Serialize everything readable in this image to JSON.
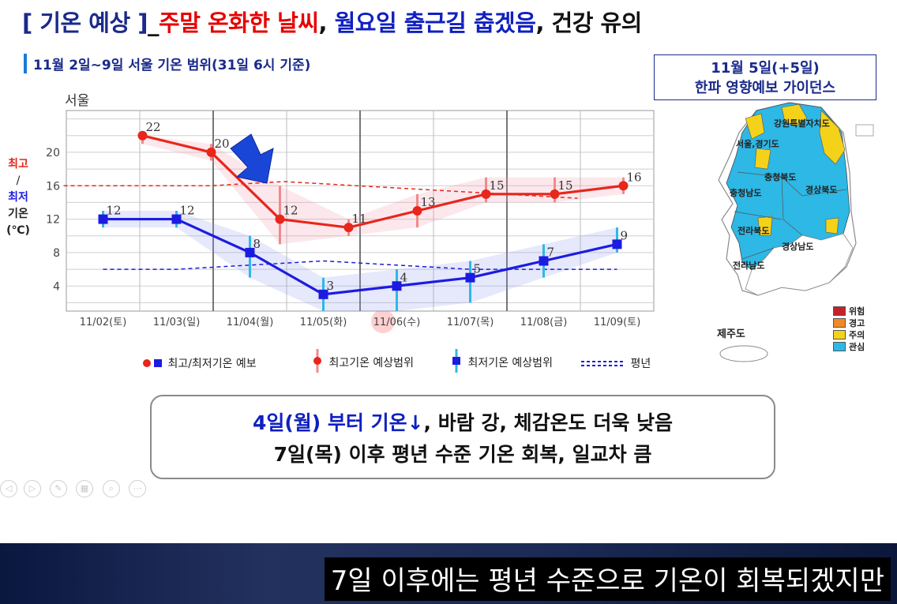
{
  "title": {
    "bracket": "[ 기온 예상 ]",
    "underscore": "_",
    "red": "주말 온화한 날씨",
    "sep1": ", ",
    "blue": "월요일 출근길 춥겠음",
    "sep2": ", 건강 유의"
  },
  "subtitle": "11월 2일~9일 서울 기온 범위(31일 6시 기준)",
  "city": "서울",
  "ylabel": {
    "max": "최고",
    "slash": "/",
    "min": "최저",
    "temp": "기온",
    "unit": "(℃)"
  },
  "legend": {
    "forecast": "최고/최저기온 예보",
    "max_range": "최고기온 예상범위",
    "min_range": "최저기온 예상범위",
    "normal": "평년"
  },
  "summary": {
    "line1_blue": "4일(월) 부터 기온↓",
    "line1_rest": ", 바람 강, 체감온도 더욱 낮음",
    "line2": "7일(목) 이후 평년 수준 기온 회복, 일교차 큼"
  },
  "guide": {
    "line1": "11월 5일(+5일)",
    "line2": "한파 영향예보 가이던스"
  },
  "map": {
    "labels": [
      "강원특별자치도",
      "서울,경기도",
      "충청북도",
      "충청남도",
      "경상북도",
      "전라북도",
      "경상남도",
      "전라남도"
    ],
    "jeju": "제주도",
    "legend": [
      {
        "label": "위험",
        "color": "#c8202a"
      },
      {
        "label": "경고",
        "color": "#f08a24"
      },
      {
        "label": "주의",
        "color": "#f4d21a"
      },
      {
        "label": "관심",
        "color": "#2db8e6"
      }
    ]
  },
  "caption": "7일 이후에는 평년 수준으로 기온이 회복되겠지만",
  "chart_data": {
    "type": "line",
    "categories": [
      "11/02(토)",
      "11/03(일)",
      "11/04(월)",
      "11/05(화)",
      "11/06(수)",
      "11/07(목)",
      "11/08(금)",
      "11/09(토)"
    ],
    "ylim": [
      1,
      25
    ],
    "yticks": [
      4,
      8,
      12,
      16,
      20
    ],
    "grid": true,
    "series": [
      {
        "name": "최고기온",
        "color": "#e8261c",
        "values": [
          22,
          20,
          12,
          11,
          13,
          15,
          15,
          16
        ],
        "range_low": [
          21,
          19,
          9,
          10,
          11,
          14,
          14,
          15
        ],
        "range_high": [
          22,
          21,
          16,
          12,
          15,
          17,
          17,
          17
        ],
        "start_index": 0
      },
      {
        "name": "최저기온",
        "color": "#1c1ce0",
        "values": [
          12,
          12,
          8,
          3,
          4,
          5,
          7,
          9
        ],
        "range_low": [
          11,
          11,
          5,
          1,
          1,
          2,
          5,
          8
        ],
        "range_high": [
          13,
          13,
          10,
          5,
          6,
          7,
          9,
          11
        ],
        "start_index": 0
      }
    ],
    "normal": {
      "max": [
        16,
        16,
        16,
        16.5,
        16,
        15.5,
        15,
        14.5
      ],
      "min": [
        6,
        6,
        6.5,
        7,
        6.5,
        6,
        6,
        6
      ]
    }
  }
}
